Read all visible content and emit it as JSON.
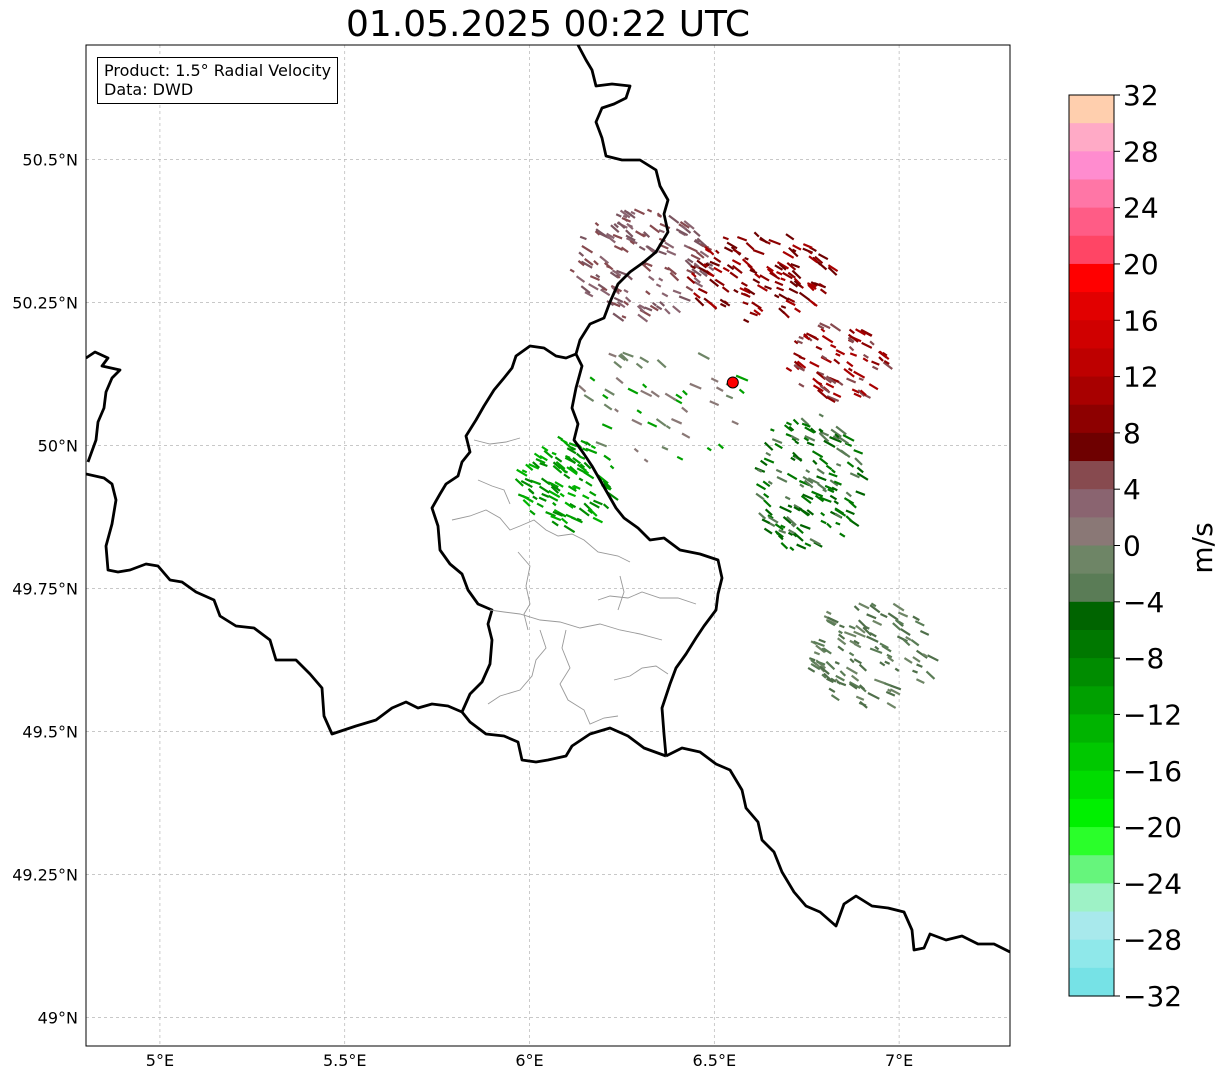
{
  "title": "01.05.2025 00:22 UTC",
  "infobox": {
    "product": "Product: 1.5° Radial Velocity",
    "data": "Data: DWD"
  },
  "map_extent": {
    "lon": [
      4.8,
      7.3
    ],
    "lat": [
      48.95,
      50.7
    ]
  },
  "lon_ticks": [
    {
      "v": 5.0,
      "label": "5°E"
    },
    {
      "v": 5.5,
      "label": "5.5°E"
    },
    {
      "v": 6.0,
      "label": "6°E"
    },
    {
      "v": 6.5,
      "label": "6.5°E"
    },
    {
      "v": 7.0,
      "label": "7°E"
    }
  ],
  "lat_ticks": [
    {
      "v": 49.0,
      "label": "49°N"
    },
    {
      "v": 49.25,
      "label": "49.25°N"
    },
    {
      "v": 49.5,
      "label": "49.5°N"
    },
    {
      "v": 49.75,
      "label": "49.75°N"
    },
    {
      "v": 50.0,
      "label": "50°N"
    },
    {
      "v": 50.25,
      "label": "50.25°N"
    },
    {
      "v": 50.5,
      "label": "50.5°N"
    }
  ],
  "radar_site": {
    "lon": 6.55,
    "lat": 50.11,
    "color": "#ff0000"
  },
  "colorbar": {
    "label": "m/s",
    "min": -32,
    "max": 32,
    "tick_labels": [
      "32",
      "28",
      "24",
      "20",
      "16",
      "12",
      "8",
      "4",
      "0",
      "−4",
      "−8",
      "−12",
      "−16",
      "−20",
      "−24",
      "−28",
      "−32"
    ],
    "colors_top_to_bottom": [
      "#ffcfae",
      "#ffaac6",
      "#ff8ccf",
      "#ff76a6",
      "#ff5c86",
      "#ff4565",
      "#ff0000",
      "#e20000",
      "#d00000",
      "#be0000",
      "#a80000",
      "#8d0000",
      "#6e0000",
      "#874a4f",
      "#8a6470",
      "#8a7876",
      "#6e8566",
      "#5a7c56",
      "#006400",
      "#007800",
      "#008c00",
      "#00a000",
      "#00b400",
      "#00c800",
      "#00dc00",
      "#00f000",
      "#2aff2a",
      "#66f57c",
      "#9ef2c6",
      "#a8e9ec",
      "#8fe8ea",
      "#76e2e6"
    ]
  }
}
